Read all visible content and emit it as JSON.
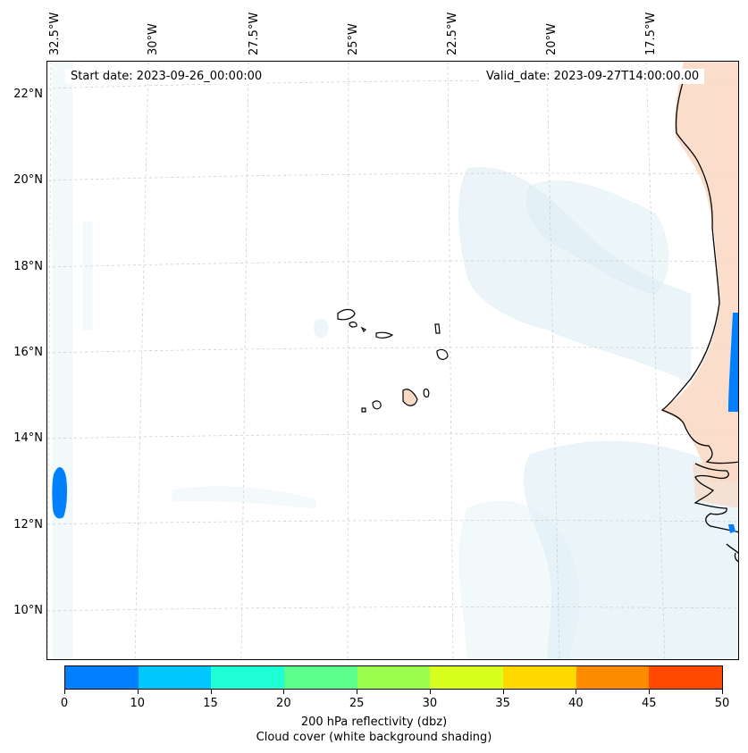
{
  "map": {
    "start_date": "Start date: 2023-09-26_00:00:00",
    "valid_date": "Valid_date: 2023-09-27T14:00:00.00",
    "top_lon_labels": [
      "32.5°W",
      "30°W",
      "27.5°W",
      "25°W",
      "22.5°W",
      "20°W",
      "17.5°W"
    ],
    "lat_labels": [
      "22°N",
      "20°N",
      "18°N",
      "16°N",
      "14°N",
      "12°N",
      "10°N"
    ],
    "gridlines": true,
    "colors": {
      "land_tint": "#f9d9c4",
      "cloud_tint": "#dceef5",
      "reflectivity_blue": "#0080ff",
      "coastline": "#000000"
    }
  },
  "colorbar": {
    "ticks": [
      "0",
      "10",
      "15",
      "20",
      "25",
      "30",
      "35",
      "40",
      "45",
      "50"
    ],
    "colors": [
      "#0080ff",
      "#00c8ff",
      "#1effd6",
      "#5cff8c",
      "#9cff50",
      "#d8ff1e",
      "#ffd800",
      "#ff8c00",
      "#ff4a00"
    ],
    "caption_line1": "200 hPa reflectivity (dbz)",
    "caption_line2": "Cloud cover (white background shading)"
  }
}
